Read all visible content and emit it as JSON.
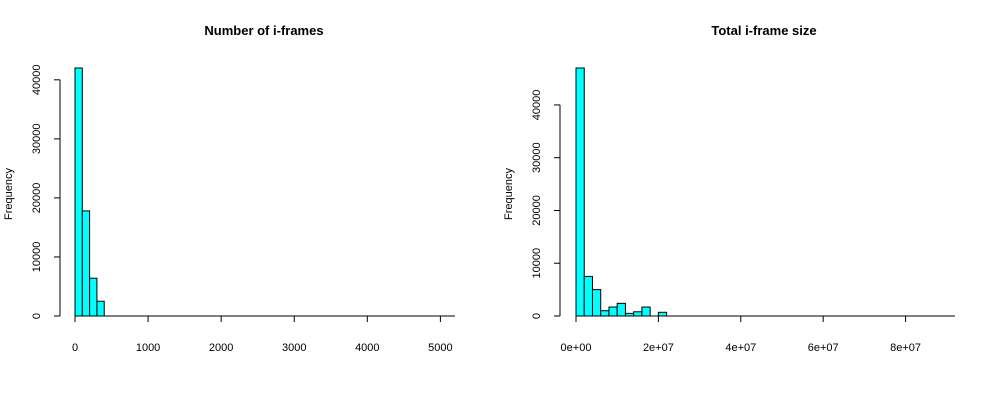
{
  "chart_data": [
    {
      "type": "bar",
      "title": "Number of i-frames",
      "xlabel": "",
      "ylabel": "Frequency",
      "bar_color": "#00ffff",
      "bin_edges": [
        0,
        100,
        200,
        300,
        400
      ],
      "values": [
        42000,
        17800,
        6400,
        2500
      ],
      "xlim": [
        0,
        5200
      ],
      "ylim": [
        0,
        42000
      ],
      "x_ticks": [
        0,
        1000,
        2000,
        3000,
        4000,
        5000
      ],
      "x_tick_labels": [
        "0",
        "1000",
        "2000",
        "3000",
        "4000",
        "5000"
      ],
      "y_ticks": [
        0,
        10000,
        20000,
        30000,
        40000
      ],
      "y_tick_labels": [
        "0",
        "10000",
        "20000",
        "30000",
        "40000"
      ]
    },
    {
      "type": "bar",
      "title": "Total i-frame size",
      "xlabel": "",
      "ylabel": "Frequency",
      "bar_color": "#00ffff",
      "bin_edges": [
        0,
        2000000,
        4000000,
        6000000,
        8000000,
        10000000,
        12000000,
        14000000,
        16000000,
        18000000,
        20000000,
        22000000
      ],
      "values": [
        47000,
        7500,
        5000,
        1000,
        1700,
        2400,
        500,
        800,
        1700,
        0,
        700
      ],
      "xlim": [
        0,
        92000000
      ],
      "ylim": [
        0,
        47000
      ],
      "x_ticks": [
        0,
        20000000,
        40000000,
        60000000,
        80000000
      ],
      "x_tick_labels": [
        "0e+00",
        "2e+07",
        "4e+07",
        "6e+07",
        "8e+07"
      ],
      "y_ticks": [
        0,
        10000,
        20000,
        30000,
        40000
      ],
      "y_tick_labels": [
        "0",
        "10000",
        "20000",
        "30000",
        "40000"
      ]
    }
  ]
}
